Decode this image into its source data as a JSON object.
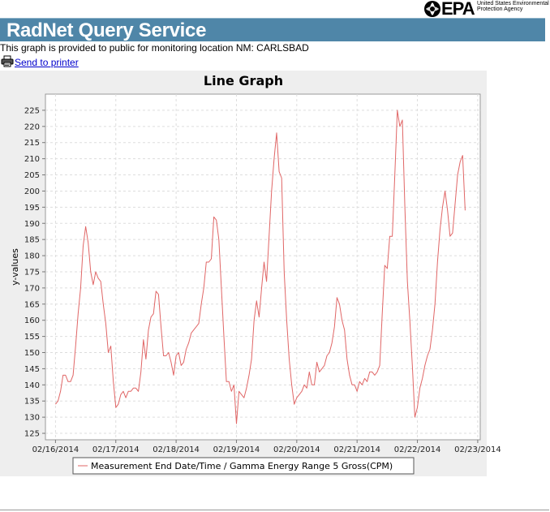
{
  "header": {
    "logo_text": "EPA",
    "logo_subtext": "United States Environmental Protection Agency",
    "title": "RadNet Query Service",
    "banner_color": "#4f86a8"
  },
  "notice": {
    "text": "This graph is provided to public for monitoring location NM: CARLSBAD"
  },
  "actions": {
    "print_icon": "printer-icon",
    "print_label": "Send to printer"
  },
  "chart_data": {
    "type": "line",
    "title": "Line Graph",
    "xlabel": "",
    "ylabel": "y-values",
    "x_ticks": [
      "02/16/2014",
      "02/17/2014",
      "02/18/2014",
      "02/19/2014",
      "02/20/2014",
      "02/21/2014",
      "02/22/2014",
      "02/23/2014"
    ],
    "xlim": [
      "2014-02-15 20:00",
      "2014-02-23 01:00"
    ],
    "ylim": [
      123,
      230
    ],
    "y_ticks": [
      125,
      130,
      135,
      140,
      145,
      150,
      155,
      160,
      165,
      170,
      175,
      180,
      185,
      190,
      195,
      200,
      205,
      210,
      215,
      220,
      225
    ],
    "grid": true,
    "legend_position": "bottom",
    "series": [
      {
        "name": "Measurement End Date/Time / Gamma Energy Range 5 Gross(CPM)",
        "color": "#e06666",
        "points": [
          [
            "2014-02-16 00:00",
            134
          ],
          [
            "2014-02-16 01:00",
            135
          ],
          [
            "2014-02-16 02:00",
            138
          ],
          [
            "2014-02-16 03:00",
            143
          ],
          [
            "2014-02-16 04:00",
            143
          ],
          [
            "2014-02-16 05:00",
            141
          ],
          [
            "2014-02-16 06:00",
            141
          ],
          [
            "2014-02-16 07:00",
            143
          ],
          [
            "2014-02-16 08:00",
            152
          ],
          [
            "2014-02-16 09:00",
            162
          ],
          [
            "2014-02-16 10:00",
            170
          ],
          [
            "2014-02-16 11:00",
            183
          ],
          [
            "2014-02-16 12:00",
            189
          ],
          [
            "2014-02-16 13:00",
            184
          ],
          [
            "2014-02-16 14:00",
            175
          ],
          [
            "2014-02-16 15:00",
            171
          ],
          [
            "2014-02-16 16:00",
            175
          ],
          [
            "2014-02-16 17:00",
            173
          ],
          [
            "2014-02-16 18:00",
            172
          ],
          [
            "2014-02-16 19:00",
            165
          ],
          [
            "2014-02-16 20:00",
            159
          ],
          [
            "2014-02-16 21:00",
            150
          ],
          [
            "2014-02-16 22:00",
            152
          ],
          [
            "2014-02-16 23:00",
            141
          ],
          [
            "2014-02-17 00:00",
            133
          ],
          [
            "2014-02-17 01:00",
            134
          ],
          [
            "2014-02-17 02:00",
            137
          ],
          [
            "2014-02-17 03:00",
            138
          ],
          [
            "2014-02-17 04:00",
            136
          ],
          [
            "2014-02-17 05:00",
            138
          ],
          [
            "2014-02-17 06:00",
            138
          ],
          [
            "2014-02-17 07:00",
            139
          ],
          [
            "2014-02-17 08:00",
            139
          ],
          [
            "2014-02-17 09:00",
            138
          ],
          [
            "2014-02-17 10:00",
            144
          ],
          [
            "2014-02-17 11:00",
            154
          ],
          [
            "2014-02-17 12:00",
            148
          ],
          [
            "2014-02-17 13:00",
            157
          ],
          [
            "2014-02-17 14:00",
            161
          ],
          [
            "2014-02-17 15:00",
            162
          ],
          [
            "2014-02-17 16:00",
            169
          ],
          [
            "2014-02-17 17:00",
            168
          ],
          [
            "2014-02-17 18:00",
            158
          ],
          [
            "2014-02-17 19:00",
            149
          ],
          [
            "2014-02-17 20:00",
            149
          ],
          [
            "2014-02-17 21:00",
            150
          ],
          [
            "2014-02-17 22:00",
            147
          ],
          [
            "2014-02-17 23:00",
            143
          ],
          [
            "2014-02-18 00:00",
            149
          ],
          [
            "2014-02-18 01:00",
            150
          ],
          [
            "2014-02-18 02:00",
            146
          ],
          [
            "2014-02-18 03:00",
            147
          ],
          [
            "2014-02-18 04:00",
            151
          ],
          [
            "2014-02-18 05:00",
            153
          ],
          [
            "2014-02-18 06:00",
            156
          ],
          [
            "2014-02-18 07:00",
            157
          ],
          [
            "2014-02-18 08:00",
            158
          ],
          [
            "2014-02-18 09:00",
            159
          ],
          [
            "2014-02-18 10:00",
            165
          ],
          [
            "2014-02-18 11:00",
            170
          ],
          [
            "2014-02-18 12:00",
            178
          ],
          [
            "2014-02-18 13:00",
            178
          ],
          [
            "2014-02-18 14:00",
            179
          ],
          [
            "2014-02-18 15:00",
            192
          ],
          [
            "2014-02-18 16:00",
            191
          ],
          [
            "2014-02-18 17:00",
            185
          ],
          [
            "2014-02-18 18:00",
            170
          ],
          [
            "2014-02-18 19:00",
            155
          ],
          [
            "2014-02-18 20:00",
            141
          ],
          [
            "2014-02-18 21:00",
            141
          ],
          [
            "2014-02-18 22:00",
            138
          ],
          [
            "2014-02-18 23:00",
            140
          ],
          [
            "2014-02-19 00:00",
            128
          ],
          [
            "2014-02-19 01:00",
            138
          ],
          [
            "2014-02-19 02:00",
            137
          ],
          [
            "2014-02-19 03:00",
            136
          ],
          [
            "2014-02-19 04:00",
            139
          ],
          [
            "2014-02-19 05:00",
            143
          ],
          [
            "2014-02-19 06:00",
            148
          ],
          [
            "2014-02-19 07:00",
            160
          ],
          [
            "2014-02-19 08:00",
            166
          ],
          [
            "2014-02-19 09:00",
            161
          ],
          [
            "2014-02-19 10:00",
            170
          ],
          [
            "2014-02-19 11:00",
            178
          ],
          [
            "2014-02-19 12:00",
            172
          ],
          [
            "2014-02-19 13:00",
            186
          ],
          [
            "2014-02-19 14:00",
            200
          ],
          [
            "2014-02-19 15:00",
            210
          ],
          [
            "2014-02-19 16:00",
            218
          ],
          [
            "2014-02-19 17:00",
            206
          ],
          [
            "2014-02-19 18:00",
            204
          ],
          [
            "2014-02-19 19:00",
            175
          ],
          [
            "2014-02-19 20:00",
            160
          ],
          [
            "2014-02-19 21:00",
            148
          ],
          [
            "2014-02-19 22:00",
            140
          ],
          [
            "2014-02-19 23:00",
            134
          ],
          [
            "2014-02-20 00:00",
            136
          ],
          [
            "2014-02-20 01:00",
            137
          ],
          [
            "2014-02-20 02:00",
            138
          ],
          [
            "2014-02-20 03:00",
            140
          ],
          [
            "2014-02-20 04:00",
            139
          ],
          [
            "2014-02-20 05:00",
            144
          ],
          [
            "2014-02-20 06:00",
            140
          ],
          [
            "2014-02-20 07:00",
            140
          ],
          [
            "2014-02-20 08:00",
            147
          ],
          [
            "2014-02-20 09:00",
            144
          ],
          [
            "2014-02-20 10:00",
            145
          ],
          [
            "2014-02-20 11:00",
            146
          ],
          [
            "2014-02-20 12:00",
            149
          ],
          [
            "2014-02-20 13:00",
            150
          ],
          [
            "2014-02-20 14:00",
            153
          ],
          [
            "2014-02-20 15:00",
            158
          ],
          [
            "2014-02-20 16:00",
            167
          ],
          [
            "2014-02-20 17:00",
            165
          ],
          [
            "2014-02-20 18:00",
            160
          ],
          [
            "2014-02-20 19:00",
            157
          ],
          [
            "2014-02-20 20:00",
            148
          ],
          [
            "2014-02-20 21:00",
            143
          ],
          [
            "2014-02-20 22:00",
            140
          ],
          [
            "2014-02-20 23:00",
            140
          ],
          [
            "2014-02-21 00:00",
            138
          ],
          [
            "2014-02-21 01:00",
            141
          ],
          [
            "2014-02-21 02:00",
            140
          ],
          [
            "2014-02-21 03:00",
            142
          ],
          [
            "2014-02-21 04:00",
            141
          ],
          [
            "2014-02-21 05:00",
            144
          ],
          [
            "2014-02-21 06:00",
            144
          ],
          [
            "2014-02-21 07:00",
            143
          ],
          [
            "2014-02-21 08:00",
            144
          ],
          [
            "2014-02-21 09:00",
            146
          ],
          [
            "2014-02-21 10:00",
            162
          ],
          [
            "2014-02-21 11:00",
            177
          ],
          [
            "2014-02-21 12:00",
            176
          ],
          [
            "2014-02-21 13:00",
            186
          ],
          [
            "2014-02-21 14:00",
            186
          ],
          [
            "2014-02-21 15:00",
            205
          ],
          [
            "2014-02-21 16:00",
            225
          ],
          [
            "2014-02-21 17:00",
            220
          ],
          [
            "2014-02-21 18:00",
            222
          ],
          [
            "2014-02-21 19:00",
            195
          ],
          [
            "2014-02-21 20:00",
            172
          ],
          [
            "2014-02-21 21:00",
            160
          ],
          [
            "2014-02-21 22:00",
            146
          ],
          [
            "2014-02-21 23:00",
            130
          ],
          [
            "2014-02-22 00:00",
            133
          ],
          [
            "2014-02-22 01:00",
            139
          ],
          [
            "2014-02-22 02:00",
            142
          ],
          [
            "2014-02-22 03:00",
            146
          ],
          [
            "2014-02-22 04:00",
            149
          ],
          [
            "2014-02-22 05:00",
            151
          ],
          [
            "2014-02-22 06:00",
            157
          ],
          [
            "2014-02-22 07:00",
            165
          ],
          [
            "2014-02-22 08:00",
            178
          ],
          [
            "2014-02-22 09:00",
            188
          ],
          [
            "2014-02-22 10:00",
            195
          ],
          [
            "2014-02-22 11:00",
            200
          ],
          [
            "2014-02-22 12:00",
            194
          ],
          [
            "2014-02-22 13:00",
            186
          ],
          [
            "2014-02-22 14:00",
            187
          ],
          [
            "2014-02-22 15:00",
            196
          ],
          [
            "2014-02-22 16:00",
            205
          ],
          [
            "2014-02-22 17:00",
            209
          ],
          [
            "2014-02-22 18:00",
            211
          ],
          [
            "2014-02-22 19:00",
            194
          ]
        ]
      }
    ]
  }
}
